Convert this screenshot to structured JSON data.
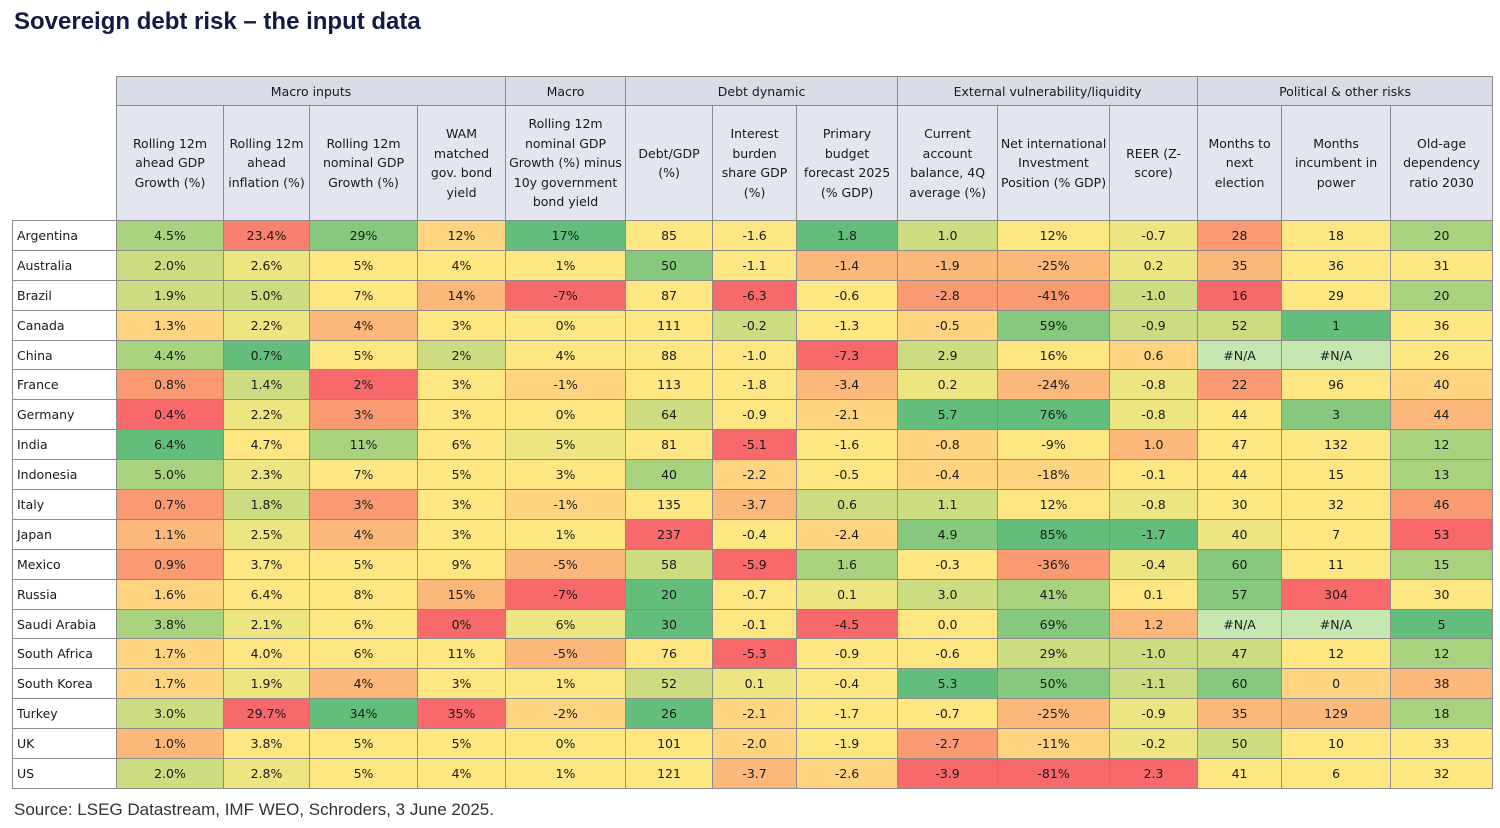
{
  "header": {
    "title": "Sovereign debt risk – the input data"
  },
  "table": {
    "groups": [
      "Macro inputs",
      "Macro",
      "Debt dynamic",
      "External vulnerability/liquidity",
      "Political & other risks"
    ],
    "columns": [
      "Rolling 12m ahead GDP Growth (%)",
      "Rolling 12m ahead inflation (%)",
      "Rolling 12m nominal GDP Growth (%)",
      "WAM matched gov. bond yield",
      "Rolling 12m nominal GDP Growth (%) minus 10y government bond yield",
      "Debt/GDP (%)",
      "Interest burden share GDP (%)",
      "Primary budget forecast 2025 (% GDP)",
      "Current account balance, 4Q average (%)",
      "Net international Investment Position (% GDP)",
      "REER (Z-score)",
      "Months to next election",
      "Months incumbent in power",
      "Old-age dependency ratio 2030"
    ],
    "rows": [
      [
        "Argentina",
        "4.5%",
        "23.4%",
        "29%",
        "12%",
        "17%",
        "85",
        "-1.6",
        "1.8",
        "1.0",
        "12%",
        "-0.7",
        "28",
        "18",
        "20"
      ],
      [
        "Australia",
        "2.0%",
        "2.6%",
        "5%",
        "4%",
        "1%",
        "50",
        "-1.1",
        "-1.4",
        "-1.9",
        "-25%",
        "0.2",
        "35",
        "36",
        "31"
      ],
      [
        "Brazil",
        "1.9%",
        "5.0%",
        "7%",
        "14%",
        "-7%",
        "87",
        "-6.3",
        "-0.6",
        "-2.8",
        "-41%",
        "-1.0",
        "16",
        "29",
        "20"
      ],
      [
        "Canada",
        "1.3%",
        "2.2%",
        "4%",
        "3%",
        "0%",
        "111",
        "-0.2",
        "-1.3",
        "-0.5",
        "59%",
        "-0.9",
        "52",
        "1",
        "36"
      ],
      [
        "China",
        "4.4%",
        "0.7%",
        "5%",
        "2%",
        "4%",
        "88",
        "-1.0",
        "-7.3",
        "2.9",
        "16%",
        "0.6",
        "#N/A",
        "#N/A",
        "26"
      ],
      [
        "France",
        "0.8%",
        "1.4%",
        "2%",
        "3%",
        "-1%",
        "113",
        "-1.8",
        "-3.4",
        "0.2",
        "-24%",
        "-0.8",
        "22",
        "96",
        "40"
      ],
      [
        "Germany",
        "0.4%",
        "2.2%",
        "3%",
        "3%",
        "0%",
        "64",
        "-0.9",
        "-2.1",
        "5.7",
        "76%",
        "-0.8",
        "44",
        "3",
        "44"
      ],
      [
        "India",
        "6.4%",
        "4.7%",
        "11%",
        "6%",
        "5%",
        "81",
        "-5.1",
        "-1.6",
        "-0.8",
        "-9%",
        "1.0",
        "47",
        "132",
        "12"
      ],
      [
        "Indonesia",
        "5.0%",
        "2.3%",
        "7%",
        "5%",
        "3%",
        "40",
        "-2.2",
        "-0.5",
        "-0.4",
        "-18%",
        "-0.1",
        "44",
        "15",
        "13"
      ],
      [
        "Italy",
        "0.7%",
        "1.8%",
        "3%",
        "3%",
        "-1%",
        "135",
        "-3.7",
        "0.6",
        "1.1",
        "12%",
        "-0.8",
        "30",
        "32",
        "46"
      ],
      [
        "Japan",
        "1.1%",
        "2.5%",
        "4%",
        "3%",
        "1%",
        "237",
        "-0.4",
        "-2.4",
        "4.9",
        "85%",
        "-1.7",
        "40",
        "7",
        "53"
      ],
      [
        "Mexico",
        "0.9%",
        "3.7%",
        "5%",
        "9%",
        "-5%",
        "58",
        "-5.9",
        "1.6",
        "-0.3",
        "-36%",
        "-0.4",
        "60",
        "11",
        "15"
      ],
      [
        "Russia",
        "1.6%",
        "6.4%",
        "8%",
        "15%",
        "-7%",
        "20",
        "-0.7",
        "0.1",
        "3.0",
        "41%",
        "0.1",
        "57",
        "304",
        "30"
      ],
      [
        "Saudi Arabia",
        "3.8%",
        "2.1%",
        "6%",
        "0%",
        "6%",
        "30",
        "-0.1",
        "-4.5",
        "0.0",
        "69%",
        "1.2",
        "#N/A",
        "#N/A",
        "5"
      ],
      [
        "South Africa",
        "1.7%",
        "4.0%",
        "6%",
        "11%",
        "-5%",
        "76",
        "-5.3",
        "-0.9",
        "-0.6",
        "29%",
        "-1.0",
        "47",
        "12",
        "12"
      ],
      [
        "South Korea",
        "1.7%",
        "1.9%",
        "4%",
        "3%",
        "1%",
        "52",
        "0.1",
        "-0.4",
        "5.3",
        "50%",
        "-1.1",
        "60",
        "0",
        "38"
      ],
      [
        "Turkey",
        "3.0%",
        "29.7%",
        "34%",
        "35%",
        "-2%",
        "26",
        "-2.1",
        "-1.7",
        "-0.7",
        "-25%",
        "-0.9",
        "35",
        "129",
        "18"
      ],
      [
        "UK",
        "1.0%",
        "3.8%",
        "5%",
        "5%",
        "0%",
        "101",
        "-2.0",
        "-1.9",
        "-2.7",
        "-11%",
        "-0.2",
        "50",
        "10",
        "33"
      ],
      [
        "US",
        "2.0%",
        "2.8%",
        "5%",
        "4%",
        "1%",
        "121",
        "-3.7",
        "-2.6",
        "-3.9",
        "-81%",
        "2.3",
        "41",
        "6",
        "32"
      ]
    ],
    "cell_colors": [
      [
        "#a9d27f",
        "#f8806f",
        "#86c97e",
        "#fed480",
        "#63be7b",
        "#fee783",
        "#fee783",
        "#63be7b",
        "#cbdc81",
        "#fee783",
        "#ede582",
        "#fa9a73",
        "#fee783",
        "#a9d27f"
      ],
      [
        "#cbdc81",
        "#ede582",
        "#fee783",
        "#fee783",
        "#fee783",
        "#86c97e",
        "#fee783",
        "#fcb87a",
        "#fcb87a",
        "#fcb87a",
        "#ede582",
        "#fcb87a",
        "#fee783",
        "#fee783"
      ],
      [
        "#cbdc81",
        "#cbdc81",
        "#fee783",
        "#fcb87a",
        "#f8696b",
        "#fee783",
        "#f8696b",
        "#fee783",
        "#fa9a73",
        "#fa9a73",
        "#cbdc81",
        "#f8696b",
        "#fee783",
        "#a9d27f"
      ],
      [
        "#fed480",
        "#ede582",
        "#fcb87a",
        "#fee783",
        "#fee783",
        "#fee783",
        "#cbdc81",
        "#fee783",
        "#fed480",
        "#86c97e",
        "#cbdc81",
        "#cbdc81",
        "#63be7b",
        "#fee783"
      ],
      [
        "#a9d27f",
        "#63be7b",
        "#fee783",
        "#cbdc81",
        "#fee783",
        "#fee783",
        "#fee783",
        "#f8696b",
        "#cbdc81",
        "#fee783",
        "#fed480",
        "#c6e7b0",
        "#c6e7b0",
        "#fee783"
      ],
      [
        "#fa9a73",
        "#cbdc81",
        "#f8696b",
        "#fee783",
        "#fed480",
        "#fee783",
        "#fee783",
        "#fcb87a",
        "#ede582",
        "#fcb87a",
        "#ede582",
        "#fa9a73",
        "#fee783",
        "#fed480"
      ],
      [
        "#f8696b",
        "#ede582",
        "#fa9a73",
        "#fee783",
        "#fee783",
        "#cbdc81",
        "#fee783",
        "#fed480",
        "#63be7b",
        "#63be7b",
        "#ede582",
        "#fee783",
        "#86c97e",
        "#fcb87a"
      ],
      [
        "#63be7b",
        "#fee783",
        "#a9d27f",
        "#fee783",
        "#ede582",
        "#fee783",
        "#f8696b",
        "#fee783",
        "#fed480",
        "#fee783",
        "#fcb87a",
        "#fee783",
        "#fee783",
        "#a9d27f"
      ],
      [
        "#a9d27f",
        "#ede582",
        "#fee783",
        "#fee783",
        "#fee783",
        "#a9d27f",
        "#fed480",
        "#fee783",
        "#fed480",
        "#fed480",
        "#fee783",
        "#fee783",
        "#fee783",
        "#a9d27f"
      ],
      [
        "#fa9a73",
        "#cbdc81",
        "#fa9a73",
        "#fee783",
        "#fed480",
        "#fee783",
        "#fcb87a",
        "#cbdc81",
        "#cbdc81",
        "#fee783",
        "#ede582",
        "#fee783",
        "#fee783",
        "#fa9a73"
      ],
      [
        "#fcb87a",
        "#ede582",
        "#fcb87a",
        "#fee783",
        "#fee783",
        "#f8696b",
        "#fee783",
        "#fed480",
        "#86c97e",
        "#63be7b",
        "#63be7b",
        "#ede582",
        "#fee783",
        "#f8696b"
      ],
      [
        "#fa9a73",
        "#fee783",
        "#fee783",
        "#fee783",
        "#fcb87a",
        "#cbdc81",
        "#f8696b",
        "#a9d27f",
        "#fee783",
        "#fa9a73",
        "#ede582",
        "#86c97e",
        "#fee783",
        "#a9d27f"
      ],
      [
        "#fed480",
        "#fee783",
        "#fee783",
        "#fcb87a",
        "#f8696b",
        "#63be7b",
        "#fee783",
        "#ede582",
        "#cbdc81",
        "#a9d27f",
        "#fee783",
        "#86c97e",
        "#f8696b",
        "#fee783"
      ],
      [
        "#a9d27f",
        "#ede582",
        "#fee783",
        "#f8696b",
        "#ede582",
        "#63be7b",
        "#fee783",
        "#f8696b",
        "#fee783",
        "#86c97e",
        "#fcb87a",
        "#c6e7b0",
        "#c6e7b0",
        "#63be7b"
      ],
      [
        "#fed480",
        "#fee783",
        "#fee783",
        "#fee783",
        "#fcb87a",
        "#fee783",
        "#f8696b",
        "#fee783",
        "#fee783",
        "#cbdc81",
        "#cbdc81",
        "#cbdc81",
        "#fee783",
        "#a9d27f"
      ],
      [
        "#fed480",
        "#ede582",
        "#fcb87a",
        "#fee783",
        "#fee783",
        "#cbdc81",
        "#ede582",
        "#fee783",
        "#63be7b",
        "#86c97e",
        "#cbdc81",
        "#86c97e",
        "#fed480",
        "#fcb87a"
      ],
      [
        "#cbdc81",
        "#f8696b",
        "#63be7b",
        "#f8696b",
        "#fed480",
        "#63be7b",
        "#fed480",
        "#fee783",
        "#fee783",
        "#fcb87a",
        "#ede582",
        "#fcb87a",
        "#fcb87a",
        "#a9d27f"
      ],
      [
        "#fcb87a",
        "#fee783",
        "#fee783",
        "#fee783",
        "#fee783",
        "#fee783",
        "#fed480",
        "#fee783",
        "#fa9a73",
        "#fed480",
        "#ede582",
        "#cbdc81",
        "#fee783",
        "#fee783"
      ],
      [
        "#cbdc81",
        "#ede582",
        "#fee783",
        "#fee783",
        "#fee783",
        "#fee783",
        "#fcb87a",
        "#fed480",
        "#f8696b",
        "#f8696b",
        "#f8696b",
        "#fee783",
        "#fee783",
        "#fee783"
      ]
    ]
  },
  "footer": {
    "source": "Source: LSEG Datastream, IMF WEO, Schroders, 3 June 2025."
  }
}
